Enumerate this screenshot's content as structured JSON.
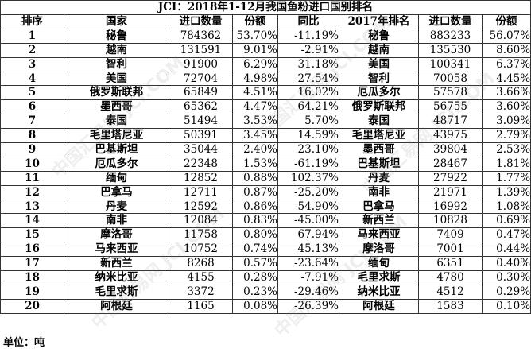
{
  "title": "JCI：2018年1-12月我国鱼粉进口国别排名",
  "headers": [
    "排序",
    "国家",
    "进口数量",
    "份额",
    "同比",
    "2017年排名",
    "进口数量",
    "份额"
  ],
  "rows": [
    {
      "rank": "1",
      "country": "秘鲁",
      "qty": "784362",
      "share": "53.70%",
      "yoy": "-11.19%",
      "c2017": "秘鲁",
      "qty2017": "883233",
      "share2017": "56.07%"
    },
    {
      "rank": "2",
      "country": "越南",
      "qty": "131591",
      "share": "9.01%",
      "yoy": "-2.91%",
      "c2017": "越南",
      "qty2017": "135530",
      "share2017": "8.60%"
    },
    {
      "rank": "3",
      "country": "智利",
      "qty": "91900",
      "share": "6.29%",
      "yoy": "31.18%",
      "c2017": "美国",
      "qty2017": "100341",
      "share2017": "6.37%"
    },
    {
      "rank": "4",
      "country": "美国",
      "qty": "72704",
      "share": "4.98%",
      "yoy": "-27.54%",
      "c2017": "智利",
      "qty2017": "70058",
      "share2017": "4.45%"
    },
    {
      "rank": "5",
      "country": "俄罗斯联邦",
      "qty": "65849",
      "share": "4.51%",
      "yoy": "16.02%",
      "c2017": "厄瓜多尔",
      "qty2017": "57578",
      "share2017": "3.66%"
    },
    {
      "rank": "6",
      "country": "墨西哥",
      "qty": "65362",
      "share": "4.47%",
      "yoy": "64.21%",
      "c2017": "俄罗斯联邦",
      "qty2017": "56755",
      "share2017": "3.60%"
    },
    {
      "rank": "7",
      "country": "泰国",
      "qty": "51494",
      "share": "3.53%",
      "yoy": "5.70%",
      "c2017": "泰国",
      "qty2017": "48717",
      "share2017": "3.09%"
    },
    {
      "rank": "8",
      "country": "毛里塔尼亚",
      "qty": "50391",
      "share": "3.45%",
      "yoy": "14.59%",
      "c2017": "毛里塔尼亚",
      "qty2017": "43975",
      "share2017": "2.79%"
    },
    {
      "rank": "9",
      "country": "巴基斯坦",
      "qty": "35044",
      "share": "2.40%",
      "yoy": "23.10%",
      "c2017": "墨西哥",
      "qty2017": "39804",
      "share2017": "2.53%"
    },
    {
      "rank": "10",
      "country": "厄瓜多尔",
      "qty": "22348",
      "share": "1.53%",
      "yoy": "-61.19%",
      "c2017": "巴基斯坦",
      "qty2017": "28467",
      "share2017": "1.81%"
    },
    {
      "rank": "11",
      "country": "缅甸",
      "qty": "12852",
      "share": "0.88%",
      "yoy": "102.37%",
      "c2017": "丹麦",
      "qty2017": "27922",
      "share2017": "1.77%"
    },
    {
      "rank": "12",
      "country": "巴拿马",
      "qty": "12711",
      "share": "0.87%",
      "yoy": "-25.20%",
      "c2017": "南非",
      "qty2017": "21971",
      "share2017": "1.39%"
    },
    {
      "rank": "13",
      "country": "丹麦",
      "qty": "12592",
      "share": "0.86%",
      "yoy": "-54.90%",
      "c2017": "巴拿马",
      "qty2017": "16992",
      "share2017": "1.08%"
    },
    {
      "rank": "14",
      "country": "南非",
      "qty": "12084",
      "share": "0.83%",
      "yoy": "-45.00%",
      "c2017": "新西兰",
      "qty2017": "10828",
      "share2017": "0.69%"
    },
    {
      "rank": "15",
      "country": "摩洛哥",
      "qty": "11758",
      "share": "0.80%",
      "yoy": "67.94%",
      "c2017": "马来西亚",
      "qty2017": "7409",
      "share2017": "0.47%"
    },
    {
      "rank": "16",
      "country": "马来西亚",
      "qty": "10752",
      "share": "0.74%",
      "yoy": "45.13%",
      "c2017": "摩洛哥",
      "qty2017": "7001",
      "share2017": "0.44%"
    },
    {
      "rank": "17",
      "country": "新西兰",
      "qty": "8268",
      "share": "0.57%",
      "yoy": "-23.64%",
      "c2017": "缅甸",
      "qty2017": "6351",
      "share2017": "0.40%"
    },
    {
      "rank": "18",
      "country": "纳米比亚",
      "qty": "4155",
      "share": "0.28%",
      "yoy": "-7.91%",
      "c2017": "毛里求斯",
      "qty2017": "4780",
      "share2017": "0.30%"
    },
    {
      "rank": "19",
      "country": "毛里求斯",
      "qty": "3372",
      "share": "0.23%",
      "yoy": "-29.46%",
      "c2017": "纳米比亚",
      "qty2017": "4512",
      "share2017": "0.29%"
    },
    {
      "rank": "20",
      "country": "阿根廷",
      "qty": "1165",
      "share": "0.08%",
      "yoy": "-26.39%",
      "c2017": "阿根廷",
      "qty2017": "1583",
      "share2017": "0.10%"
    }
  ],
  "unit": "单位：吨",
  "watermark": "中国汇易网 JCI.COM"
}
